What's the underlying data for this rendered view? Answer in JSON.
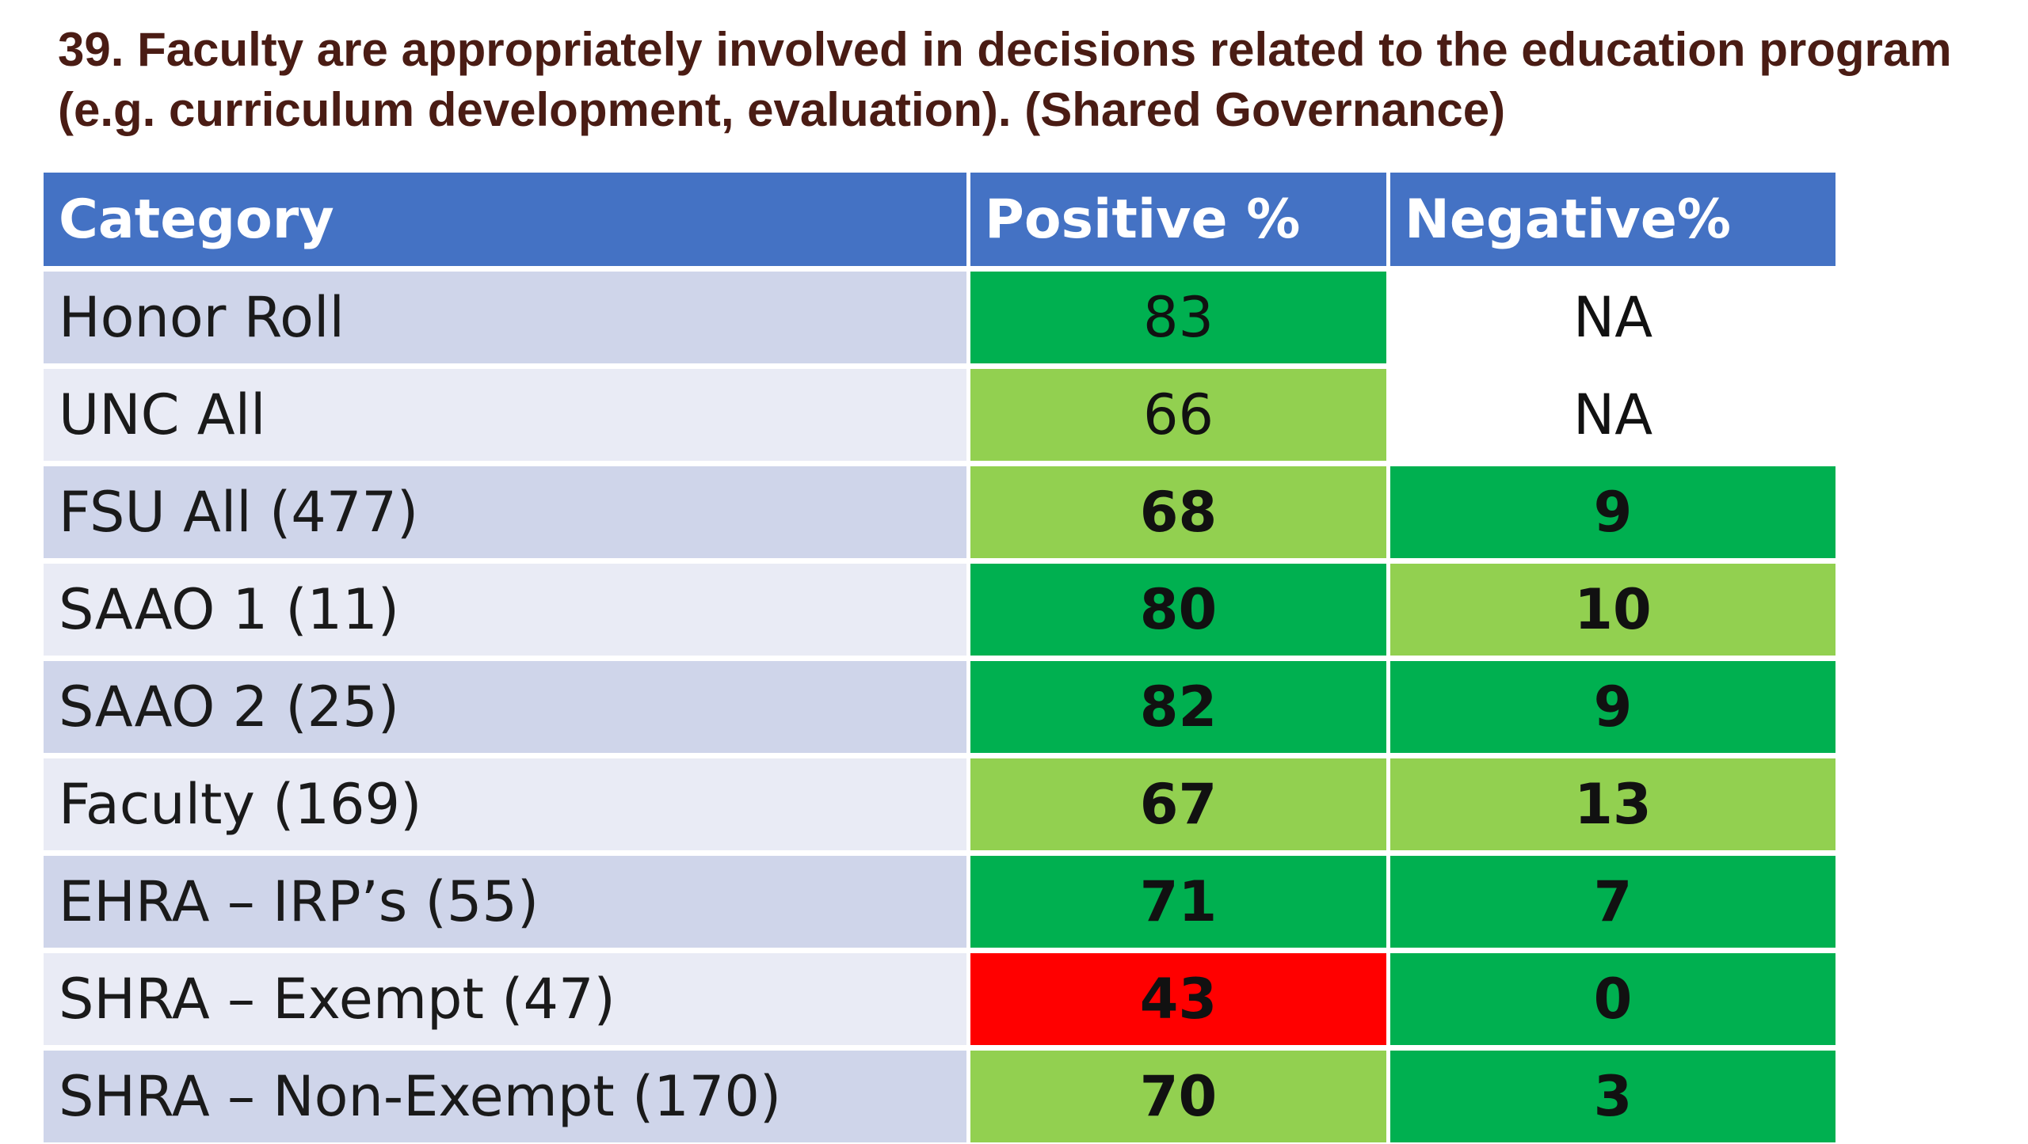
{
  "title": "39. Faculty are appropriately involved in decisions related to the education program (e.g. curriculum development, evaluation). (Shared Governance)",
  "colors": {
    "header_bg": "#4472c4",
    "row_band_dark": "#cfd5ea",
    "row_band_light": "#e9ebf5",
    "dark_green": "#00b050",
    "light_green": "#92d050",
    "red": "#ff0000",
    "white": "#ffffff"
  },
  "chart_data": {
    "type": "table",
    "columns": [
      "Category",
      "Positive %",
      "Negative%"
    ],
    "rows": [
      {
        "category": "Honor Roll",
        "positive": "83",
        "negative": "NA",
        "positive_color": "dark_green",
        "negative_color": "white",
        "bold": false
      },
      {
        "category": "UNC All",
        "positive": "66",
        "negative": "NA",
        "positive_color": "light_green",
        "negative_color": "white",
        "bold": false
      },
      {
        "category": "FSU All (477)",
        "positive": "68",
        "negative": "9",
        "positive_color": "light_green",
        "negative_color": "dark_green",
        "bold": true
      },
      {
        "category": "SAAO 1 (11)",
        "positive": "80",
        "negative": "10",
        "positive_color": "dark_green",
        "negative_color": "light_green",
        "bold": true
      },
      {
        "category": "SAAO 2 (25)",
        "positive": "82",
        "negative": "9",
        "positive_color": "dark_green",
        "negative_color": "dark_green",
        "bold": true
      },
      {
        "category": "Faculty (169)",
        "positive": "67",
        "negative": "13",
        "positive_color": "light_green",
        "negative_color": "light_green",
        "bold": true
      },
      {
        "category": "EHRA – IRP’s (55)",
        "positive": "71",
        "negative": "7",
        "positive_color": "dark_green",
        "negative_color": "dark_green",
        "bold": true
      },
      {
        "category": "SHRA – Exempt (47)",
        "positive": "43",
        "negative": "0",
        "positive_color": "red",
        "negative_color": "dark_green",
        "bold": true
      },
      {
        "category": "SHRA – Non-Exempt (170)",
        "positive": "70",
        "negative": "3",
        "positive_color": "light_green",
        "negative_color": "dark_green",
        "bold": true
      }
    ]
  }
}
